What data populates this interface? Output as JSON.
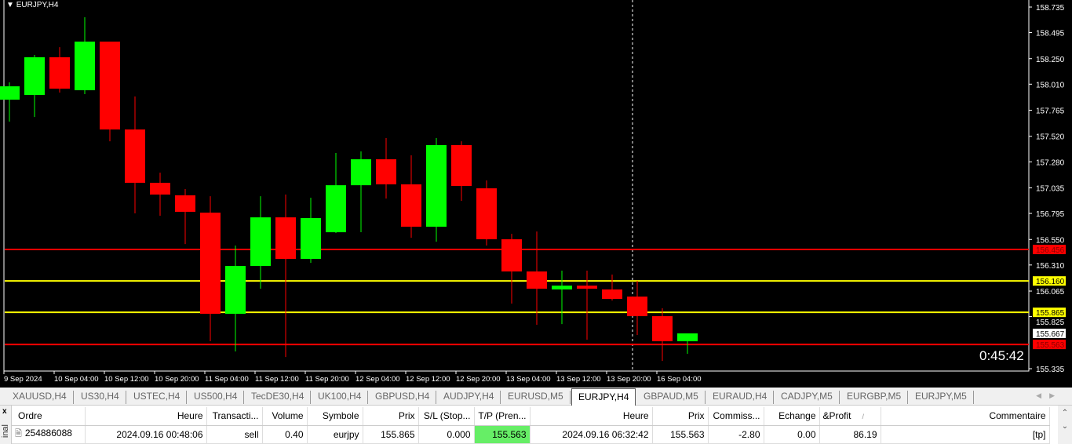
{
  "chart": {
    "symbol_label": "EURJPY,H4",
    "timer": "0:45:42",
    "colors": {
      "bull": "#00ff00",
      "bear": "#ff0000",
      "background": "#000000",
      "axis": "#ffffff",
      "level_red": "#ff0000",
      "level_yellow": "#ffff00"
    },
    "price_ticks": [
      "158.735",
      "158.495",
      "158.250",
      "158.010",
      "157.765",
      "157.520",
      "157.280",
      "157.035",
      "156.795",
      "156.550",
      "156.310",
      "156.065",
      "155.825",
      "155.335"
    ],
    "time_labels": [
      "9 Sep 2024",
      "10 Sep 04:00",
      "10 Sep 12:00",
      "10 Sep 20:00",
      "11 Sep 04:00",
      "11 Sep 12:00",
      "11 Sep 20:00",
      "12 Sep 04:00",
      "12 Sep 12:00",
      "12 Sep 20:00",
      "13 Sep 04:00",
      "13 Sep 12:00",
      "13 Sep 20:00",
      "16 Sep 04:00"
    ],
    "levels": [
      {
        "price": "156.456",
        "color": "#ff0000"
      },
      {
        "price": "156.160",
        "color": "#ffff00"
      },
      {
        "price": "155.865",
        "color": "#ffff00"
      },
      {
        "price": "155.563",
        "color": "#ff0000"
      }
    ],
    "current_price": "155.667",
    "ohlc": [
      [
        157.864,
        158.027,
        157.658,
        157.99
      ],
      [
        157.909,
        158.285,
        157.702,
        158.263
      ],
      [
        158.263,
        158.358,
        157.931,
        157.968
      ],
      [
        157.953,
        158.639,
        157.916,
        158.41
      ],
      [
        158.41,
        158.41,
        157.473,
        157.584
      ],
      [
        157.584,
        157.894,
        156.795,
        157.083
      ],
      [
        157.083,
        157.178,
        156.773,
        156.972
      ],
      [
        156.965,
        157.024,
        156.507,
        156.81
      ],
      [
        156.802,
        156.957,
        155.593,
        155.851
      ],
      [
        155.851,
        156.493,
        155.497,
        156.301
      ],
      [
        156.301,
        156.957,
        156.087,
        156.758
      ],
      [
        156.758,
        156.972,
        155.445,
        156.367
      ],
      [
        156.367,
        156.942,
        156.33,
        156.751
      ],
      [
        156.618,
        157.363,
        156.611,
        157.06
      ],
      [
        157.06,
        157.378,
        156.618,
        157.304
      ],
      [
        157.304,
        157.503,
        156.935,
        157.068
      ],
      [
        157.068,
        157.341,
        156.566,
        156.67
      ],
      [
        156.67,
        157.503,
        156.529,
        157.437
      ],
      [
        157.437,
        157.473,
        156.913,
        157.053
      ],
      [
        157.031,
        157.105,
        156.493,
        156.552
      ],
      [
        156.552,
        156.603,
        155.947,
        156.249
      ],
      [
        156.249,
        156.625,
        155.748,
        156.087
      ],
      [
        156.08,
        156.257,
        155.755,
        156.116
      ],
      [
        156.116,
        156.257,
        155.608,
        156.087
      ],
      [
        156.08,
        156.22,
        155.976,
        155.991
      ],
      [
        156.013,
        156.161,
        155.652,
        155.829
      ],
      [
        155.829,
        155.903,
        155.408,
        155.593
      ],
      [
        155.593,
        155.667,
        155.475,
        155.667
      ]
    ]
  },
  "tabs": [
    "XAUUSD,H4",
    "US30,H4",
    "USTEC,H4",
    "US500,H4",
    "TecDE30,H4",
    "UK100,H4",
    "GBPUSD,H4",
    "AUDJPY,H4",
    "EURUSD,M5",
    "EURJPY,H4",
    "GBPAUD,M5",
    "EURAUD,H4",
    "CADJPY,M5",
    "EURGBP,M5",
    "EURJPY,M5"
  ],
  "active_tab": "EURJPY,H4",
  "terminal": {
    "close": "x",
    "side_label": "inal",
    "columns": [
      "Ordre",
      "Heure",
      "Transacti...",
      "Volume",
      "Symbole",
      "Prix",
      "S/L (Stop...",
      "T/P (Pren...",
      "Heure",
      "Prix",
      "Commiss...",
      "Echange",
      "&Profit",
      "Commentaire"
    ],
    "sort_mark": "/",
    "rows": [
      [
        "254886088",
        "2024.09.16 00:48:06",
        "sell",
        "0.40",
        "eurjpy",
        "155.865",
        "0.000",
        "155.563",
        "2024.09.16 06:32:42",
        "155.563",
        "-2.80",
        "0.00",
        "86.19",
        "[tp]"
      ]
    ]
  }
}
